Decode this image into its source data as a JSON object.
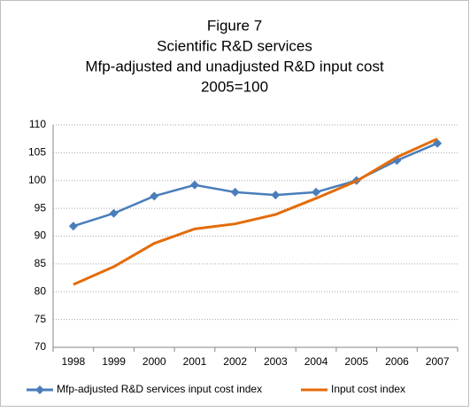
{
  "chart_data": {
    "type": "line",
    "title": [
      "Figure 7",
      "Scientific R&D services",
      "Mfp-adjusted and unadjusted R&D input cost",
      "2005=100"
    ],
    "categories": [
      "1998",
      "1999",
      "2000",
      "2001",
      "2002",
      "2003",
      "2004",
      "2005",
      "2006",
      "2007"
    ],
    "series": [
      {
        "name": "Mfp-adjusted R&D services input cost index",
        "color": "#4a7ebb",
        "marker": "diamond",
        "values": [
          91.8,
          94.1,
          97.2,
          99.2,
          97.9,
          97.4,
          97.9,
          100,
          103.6,
          106.7
        ]
      },
      {
        "name": "Input cost index",
        "color": "#e46c0a",
        "marker": "none",
        "values": [
          81.3,
          84.5,
          88.7,
          91.3,
          92.2,
          93.9,
          96.8,
          99.9,
          104.2,
          107.5
        ]
      }
    ],
    "ylim": [
      70,
      110
    ],
    "yticks": [
      70,
      75,
      80,
      85,
      90,
      95,
      100,
      105,
      110
    ],
    "grid": true,
    "legend": "bottom"
  }
}
